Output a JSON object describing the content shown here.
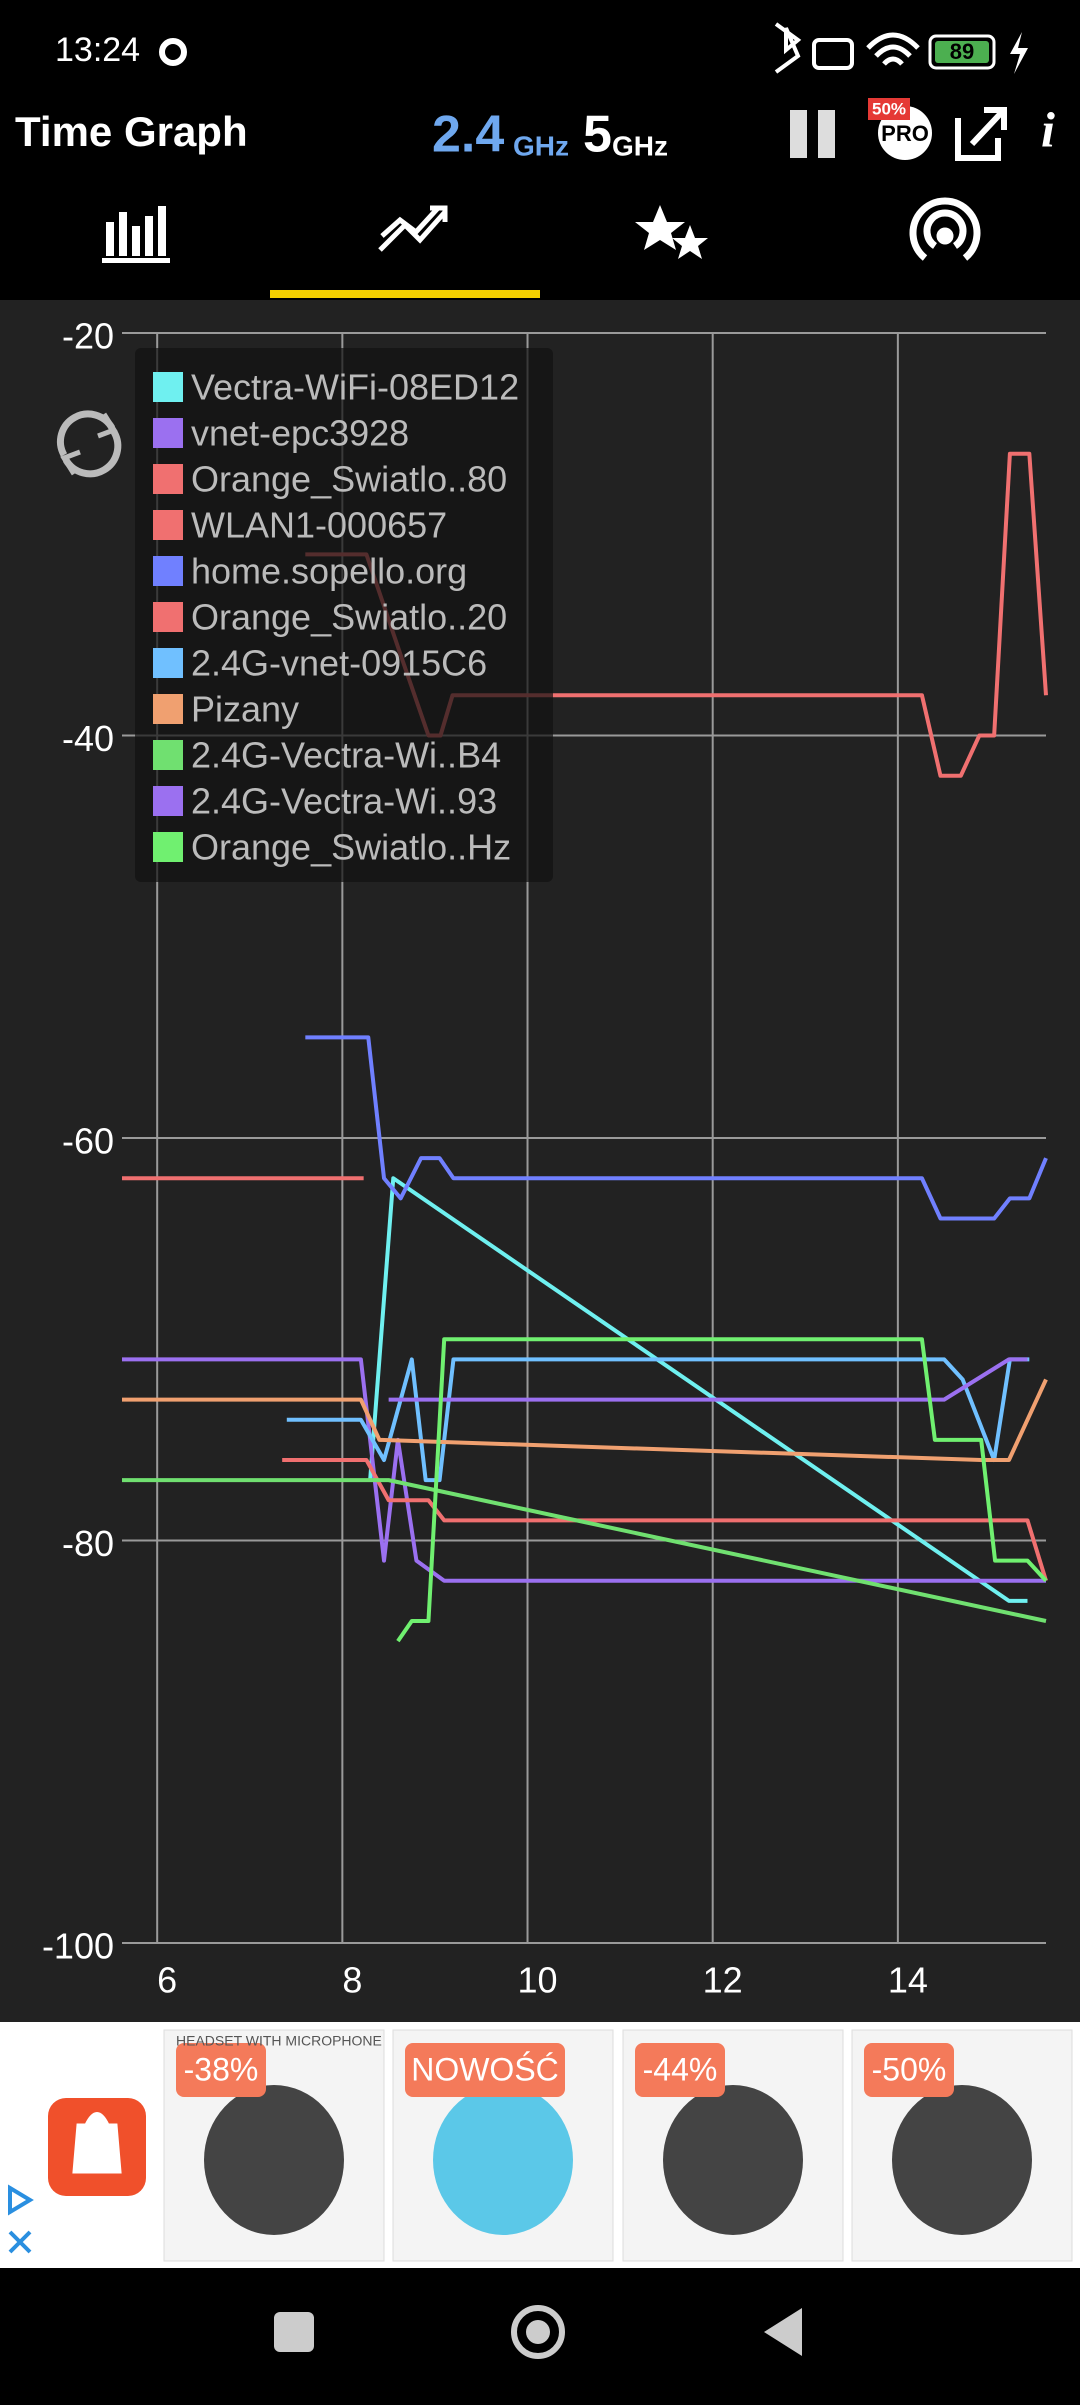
{
  "status_bar": {
    "time": "13:24",
    "battery": "89"
  },
  "header": {
    "title": "Time Graph",
    "band_24": "2.4",
    "band_24_unit": "GHz",
    "band_5": "5",
    "band_5_unit": "GHz",
    "pro_badge": "50%",
    "pro_label": "PRO",
    "info": "i"
  },
  "chart_data": {
    "type": "line",
    "xlim": [
      5.62,
      15.6
    ],
    "xticks": [
      6,
      8,
      10,
      12,
      14
    ],
    "ylim": [
      -100,
      -20
    ],
    "yticks": [
      -20,
      -40,
      -60,
      -80,
      -100
    ],
    "grid": true,
    "legend": "top-left",
    "series": [
      {
        "name": "Vectra-WiFi-08ED12",
        "color": "#6ff0f0",
        "x": [
          8.3,
          8.55,
          15.2,
          15.4
        ],
        "values": [
          -77,
          -62,
          -83,
          -83
        ]
      },
      {
        "name": "vnet-epc3928",
        "color": "#9b70f0",
        "x": [
          5.62,
          8.2,
          8.45,
          8.6,
          8.8,
          9.1,
          15.6
        ],
        "values": [
          -71,
          -71,
          -81,
          -75,
          -81,
          -82,
          -82
        ]
      },
      {
        "name": "Orange_Swiatlo..80",
        "color": "#f07070",
        "x": [
          7.6,
          8.26,
          8.63,
          8.93,
          9.06,
          9.19,
          14.26,
          14.46,
          14.68,
          14.88,
          15.04,
          15.21,
          15.42,
          15.6
        ],
        "values": [
          -31,
          -31,
          -36,
          -40,
          -40,
          -38,
          -38,
          -42,
          -42,
          -40,
          -40,
          -26,
          -26,
          -38
        ]
      },
      {
        "name": "WLAN1-000657",
        "color": "#f07070",
        "x": [
          5.62,
          8.23
        ],
        "values": [
          -62,
          -62
        ]
      },
      {
        "name": "home.sopello.org",
        "color": "#7080ff",
        "x": [
          7.6,
          8.28,
          8.45,
          8.63,
          8.85,
          9.05,
          9.2,
          14.26,
          14.46,
          15.04,
          15.21,
          15.42,
          15.6
        ],
        "values": [
          -55,
          -55,
          -62,
          -63,
          -61,
          -61,
          -62,
          -62,
          -64,
          -64,
          -63,
          -63,
          -61
        ]
      },
      {
        "name": "Orange_Swiatlo..20",
        "color": "#f07070",
        "x": [
          7.35,
          8.26,
          8.5,
          8.93,
          9.1,
          15.4,
          15.6
        ],
        "values": [
          -76,
          -76,
          -78,
          -78,
          -79,
          -79,
          -82
        ]
      },
      {
        "name": "2.4G-vnet-0915C6",
        "color": "#70c0ff",
        "x": [
          7.4,
          8.2,
          8.45,
          8.75,
          8.9,
          9.05,
          9.2,
          14.5,
          14.7,
          15.04,
          15.21,
          15.42
        ],
        "values": [
          -74,
          -74,
          -76,
          -71,
          -77,
          -77,
          -71,
          -71,
          -72,
          -76,
          -71,
          -71
        ]
      },
      {
        "name": "Pizany",
        "color": "#f0a070",
        "x": [
          5.62,
          8.2,
          8.4,
          14.9,
          15.2,
          15.6
        ],
        "values": [
          -73,
          -73,
          -75,
          -76,
          -76,
          -72
        ]
      },
      {
        "name": "2.4G-Vectra-Wi..B4",
        "color": "#70e070",
        "x": [
          5.62,
          8.5,
          15.6
        ],
        "values": [
          -77,
          -77,
          -84
        ]
      },
      {
        "name": "2.4G-Vectra-Wi..93",
        "color": "#9b70f0",
        "x": [
          8.5,
          14.5,
          15.2,
          15.4
        ],
        "values": [
          -73,
          -73,
          -71,
          -71
        ]
      },
      {
        "name": "Orange_Swiatlo..Hz",
        "color": "#70f070",
        "x": [
          8.6,
          8.75,
          8.93,
          9.1,
          14.26,
          14.4,
          14.9,
          15.05,
          15.4,
          15.6
        ],
        "values": [
          -85,
          -84,
          -84,
          -70,
          -70,
          -75,
          -75,
          -81,
          -81,
          -82
        ]
      }
    ]
  },
  "ad": {
    "headline": "HEADSET WITH MICROPHONE",
    "tags": [
      "-38%",
      "NOWOŚĆ",
      "-44%",
      "-50%"
    ]
  }
}
